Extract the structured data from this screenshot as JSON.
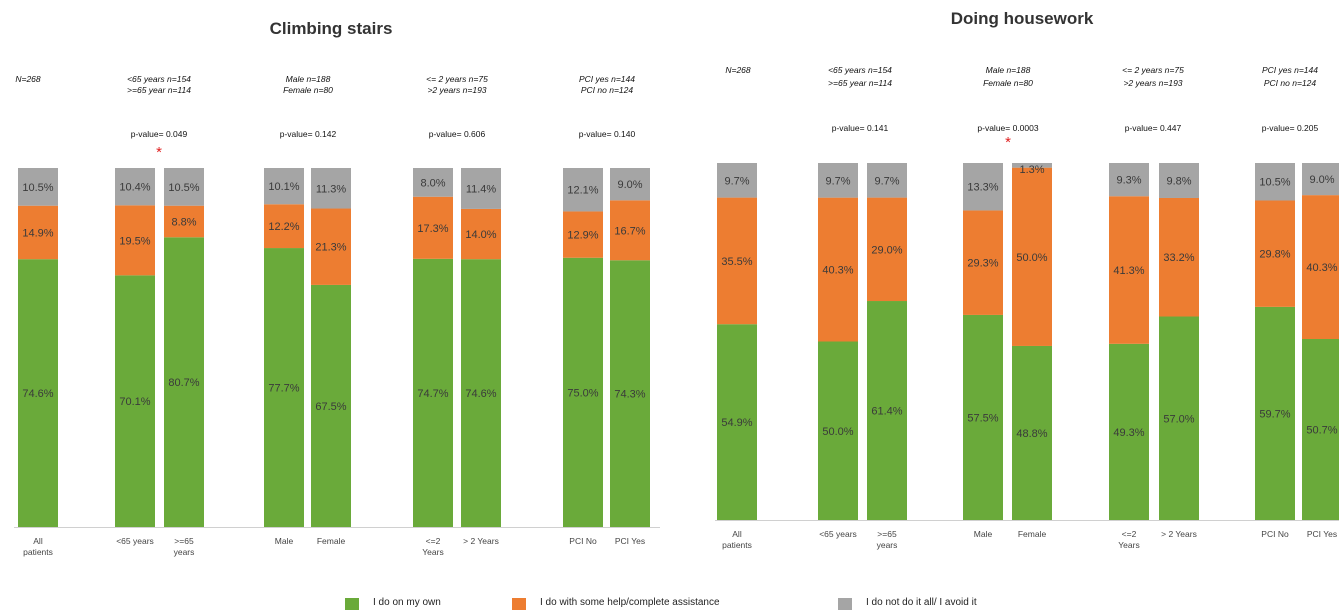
{
  "chart_data": [
    {
      "type": "bar",
      "stacked": true,
      "title": "Climbing stairs",
      "categories": [
        "All patients",
        "<65 years",
        ">=65 years",
        "Male",
        "Female",
        "<=2 Years",
        "> 2 Years",
        "PCI No",
        "PCI Yes"
      ],
      "series": [
        {
          "name": "I do on my own",
          "color": "#6aaa3a",
          "values": [
            74.6,
            70.1,
            80.7,
            77.7,
            67.5,
            74.7,
            74.6,
            75.0,
            74.3
          ],
          "labels": [
            "74.6%",
            "70.1%",
            "80.7%",
            "77.7%",
            "67.5%",
            "74.7%",
            "74.6%",
            "75.0%",
            "74.3%"
          ]
        },
        {
          "name": "I do with some help/complete assistance",
          "color": "#ed7d31",
          "values": [
            14.9,
            19.5,
            8.8,
            12.2,
            21.3,
            17.3,
            14.0,
            12.9,
            16.7
          ],
          "labels": [
            "14.9%",
            "19.5%",
            "8.8%",
            "12.2%",
            "21.3%",
            "17.3%",
            "14.0%",
            "12.9%",
            "16.7%"
          ]
        },
        {
          "name": "I do not do it all/ I avoid it",
          "color": "#a5a5a5",
          "values": [
            10.5,
            10.4,
            10.5,
            10.1,
            11.3,
            8.0,
            11.4,
            12.1,
            9.0
          ],
          "labels": [
            "10.5%",
            "10.4%",
            "10.5%",
            "10.1%",
            "11.3%",
            "8.0%",
            "11.4%",
            "12.1%",
            "9.0%"
          ]
        }
      ],
      "group_annotations": [
        {
          "lines": [
            "N=268"
          ]
        },
        {
          "lines": [
            "<65 years n=154",
            ">=65 year n=114"
          ],
          "p_value": "p-value= 0.049",
          "significant": true
        },
        {
          "lines": [
            "Male n=188",
            "Female n=80"
          ],
          "p_value": "p-value= 0.142",
          "significant": false
        },
        {
          "lines": [
            "<= 2 years n=75",
            ">2 years n=193"
          ],
          "p_value": "p-value= 0.606",
          "significant": false
        },
        {
          "lines": [
            "PCI yes n=144",
            "PCI no n=124"
          ],
          "p_value": "p-value= 0.140",
          "significant": false
        }
      ],
      "ylim": [
        0,
        100
      ],
      "grid": false,
      "legend": "bottom"
    },
    {
      "type": "bar",
      "stacked": true,
      "title": "Doing housework",
      "categories": [
        "All patients",
        "<65 years",
        ">=65 years",
        "Male",
        "Female",
        "<=2 Years",
        "> 2 Years",
        "PCI No",
        "PCI Yes"
      ],
      "series": [
        {
          "name": "I do on my own",
          "color": "#6aaa3a",
          "values": [
            54.9,
            50.0,
            61.4,
            57.5,
            48.8,
            49.3,
            57.0,
            59.7,
            50.7
          ],
          "labels": [
            "54.9%",
            "50.0%",
            "61.4%",
            "57.5%",
            "48.8%",
            "49.3%",
            "57.0%",
            "59.7%",
            "50.7%"
          ]
        },
        {
          "name": "I do with some help/complete assistance",
          "color": "#ed7d31",
          "values": [
            35.5,
            40.3,
            29.0,
            29.3,
            50.0,
            41.3,
            33.2,
            29.8,
            40.3
          ],
          "labels": [
            "35.5%",
            "40.3%",
            "29.0%",
            "29.3%",
            "50.0%",
            "41.3%",
            "33.2%",
            "29.8%",
            "40.3%"
          ]
        },
        {
          "name": "I do not do it all/ I avoid it",
          "color": "#a5a5a5",
          "values": [
            9.7,
            9.7,
            9.7,
            13.3,
            1.3,
            9.3,
            9.8,
            10.5,
            9.0
          ],
          "labels": [
            "9.7%",
            "9.7%",
            "9.7%",
            "13.3%",
            "1.3%",
            "9.3%",
            "9.8%",
            "10.5%",
            "9.0%"
          ]
        }
      ],
      "group_annotations": [
        {
          "lines": [
            "N=268"
          ]
        },
        {
          "lines": [
            "<65 years n=154",
            ">=65 year n=114"
          ],
          "p_value": "p-value= 0.141",
          "significant": false
        },
        {
          "lines": [
            "Male n=188",
            "Female n=80"
          ],
          "p_value": "p-value= 0.0003",
          "significant": true
        },
        {
          "lines": [
            "<= 2 years n=75",
            ">2 years n=193"
          ],
          "p_value": "p-value= 0.447",
          "significant": false
        },
        {
          "lines": [
            "PCI yes n=144",
            "PCI no n=124"
          ],
          "p_value": "p-value= 0.205",
          "significant": false
        }
      ],
      "ylim": [
        0,
        100
      ],
      "grid": false,
      "legend": "bottom"
    }
  ],
  "category_label_lines": [
    [
      "All",
      "patients"
    ],
    [
      "<65 years"
    ],
    [
      ">=65",
      "years"
    ],
    [
      "Male"
    ],
    [
      "Female"
    ],
    [
      "<=2",
      "Years"
    ],
    [
      "> 2 Years"
    ],
    [
      "PCI No"
    ],
    [
      "PCI Yes"
    ]
  ],
  "significance_marker": "*",
  "legend": [
    {
      "label": "I do on my own",
      "color": "#6aaa3a"
    },
    {
      "label": "I do with some help/complete assistance",
      "color": "#ed7d31"
    },
    {
      "label": "I do not do it all/ I avoid it",
      "color": "#a5a5a5"
    }
  ]
}
